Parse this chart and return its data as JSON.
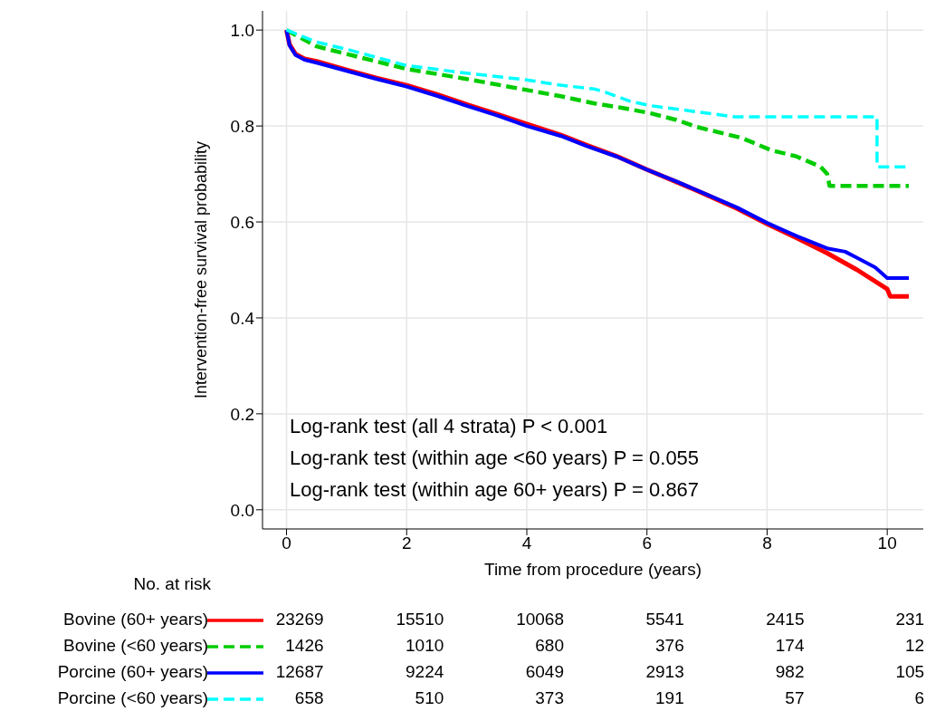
{
  "chart_data": {
    "type": "line",
    "xlabel": "Time from procedure (years)",
    "ylabel": "Intervention-free survival probability",
    "xlim": [
      -0.4,
      10.6
    ],
    "ylim": [
      -0.04,
      1.04
    ],
    "xticks": [
      0,
      2,
      4,
      6,
      8,
      10
    ],
    "yticks": [
      {
        "value": 0,
        "label": "0.0"
      },
      0.2,
      0.4,
      0.6,
      0.8,
      {
        "value": 1,
        "label": "1.0"
      }
    ],
    "grid": true,
    "legend": "bottom",
    "marker": "none",
    "series": [
      {
        "name": "Bovine (60+ years)",
        "color": "#ff0000",
        "line_style": "solid",
        "x": [
          0,
          0.05,
          0.15,
          0.3,
          0.5,
          1,
          1.5,
          2,
          2.5,
          3,
          3.5,
          4,
          4.57,
          5,
          5.5,
          6,
          6.5,
          7,
          7.5,
          8,
          8.5,
          9,
          9.5,
          10,
          10.05,
          10.36
        ],
        "values": [
          1.0,
          0.97,
          0.95,
          0.94,
          0.935,
          0.917,
          0.9,
          0.885,
          0.866,
          0.845,
          0.825,
          0.804,
          0.781,
          0.76,
          0.737,
          0.709,
          0.683,
          0.656,
          0.628,
          0.596,
          0.566,
          0.535,
          0.5,
          0.46,
          0.445,
          0.445
        ]
      },
      {
        "name": "Bovine (<60 years)",
        "color": "#00cc00",
        "line_style": "dashed",
        "x": [
          0,
          0.5,
          1,
          2,
          3,
          4,
          4.57,
          5.13,
          5.58,
          6.08,
          6.48,
          6.83,
          7.58,
          8.08,
          8.48,
          8.89,
          9.0,
          9.04,
          10.36
        ],
        "values": [
          1.0,
          0.966,
          0.95,
          0.919,
          0.898,
          0.875,
          0.862,
          0.847,
          0.838,
          0.826,
          0.813,
          0.798,
          0.775,
          0.749,
          0.737,
          0.715,
          0.7,
          0.675,
          0.675
        ]
      },
      {
        "name": "Porcine (60+ years)",
        "color": "#0000ff",
        "line_style": "solid",
        "x": [
          0,
          0.05,
          0.15,
          0.3,
          0.5,
          1,
          1.5,
          2,
          2.5,
          3,
          3.5,
          4,
          4.57,
          5,
          5.5,
          6,
          6.5,
          7,
          7.5,
          8,
          8.5,
          9,
          9.3,
          9.5,
          9.8,
          10,
          10.36
        ],
        "values": [
          1.0,
          0.968,
          0.948,
          0.938,
          0.932,
          0.915,
          0.898,
          0.882,
          0.863,
          0.842,
          0.822,
          0.8,
          0.779,
          0.758,
          0.736,
          0.709,
          0.684,
          0.657,
          0.63,
          0.598,
          0.57,
          0.545,
          0.538,
          0.525,
          0.505,
          0.483,
          0.483
        ]
      },
      {
        "name": "Porcine (<60 years)",
        "color": "#00ffff",
        "line_style": "dashed",
        "x": [
          0,
          0.5,
          1,
          2,
          3,
          4,
          4.57,
          5.13,
          5.32,
          5.73,
          6.08,
          6.57,
          7.46,
          9.83,
          9.83,
          10.36
        ],
        "values": [
          1.0,
          0.975,
          0.96,
          0.926,
          0.91,
          0.896,
          0.885,
          0.877,
          0.87,
          0.851,
          0.842,
          0.834,
          0.819,
          0.819,
          0.715,
          0.715
        ]
      }
    ],
    "annotations": [
      "Log-rank test (all 4 strata) P < 0.001",
      "Log-rank test (within age <60 years) P = 0.055",
      "Log-rank test (within age 60+ years) P = 0.867",
      "No. at risk",
      "23269",
      "15510",
      "10068",
      "5541",
      "2415",
      "231",
      "1426",
      "1010",
      "680",
      "376",
      "174",
      "12",
      "12687",
      "9224",
      "6049",
      "2913",
      "982",
      "105",
      "658",
      "510",
      "373",
      "191",
      "57",
      "6"
    ]
  }
}
